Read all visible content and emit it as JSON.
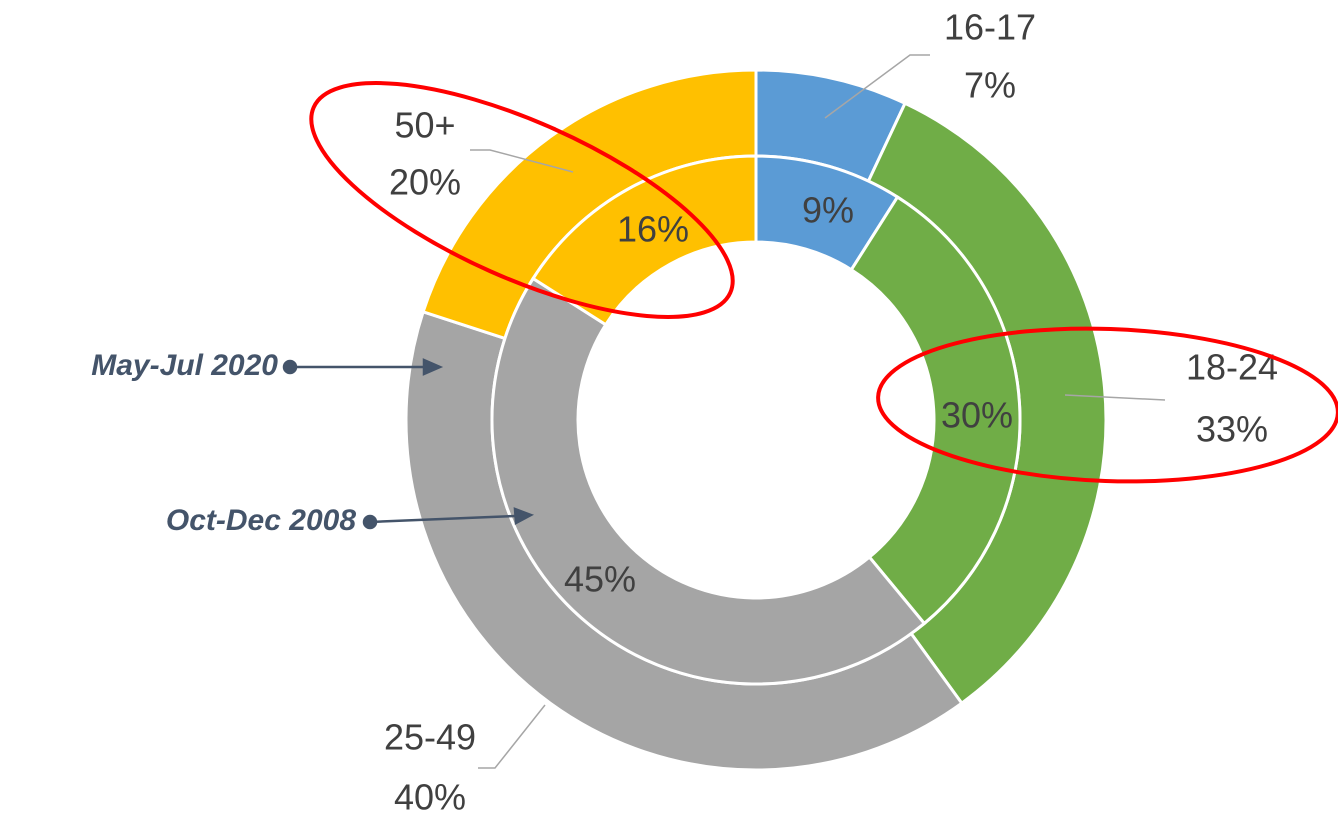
{
  "chart_data": {
    "type": "donut",
    "categories": [
      "16-17",
      "18-24",
      "25-49",
      "50+"
    ],
    "colors": [
      "#5b9bd5",
      "#70ad47",
      "#a5a5a5",
      "#ffc000"
    ],
    "series": [
      {
        "name": "May-Jul 2020",
        "values": [
          7,
          33,
          40,
          20
        ],
        "value_labels": [
          "7%",
          "33%",
          "40%",
          "20%"
        ]
      },
      {
        "name": "Oct-Dec 2008",
        "values": [
          9,
          30,
          45,
          16
        ],
        "value_labels": [
          "9%",
          "30%",
          "45%",
          "16%"
        ]
      }
    ]
  }
}
